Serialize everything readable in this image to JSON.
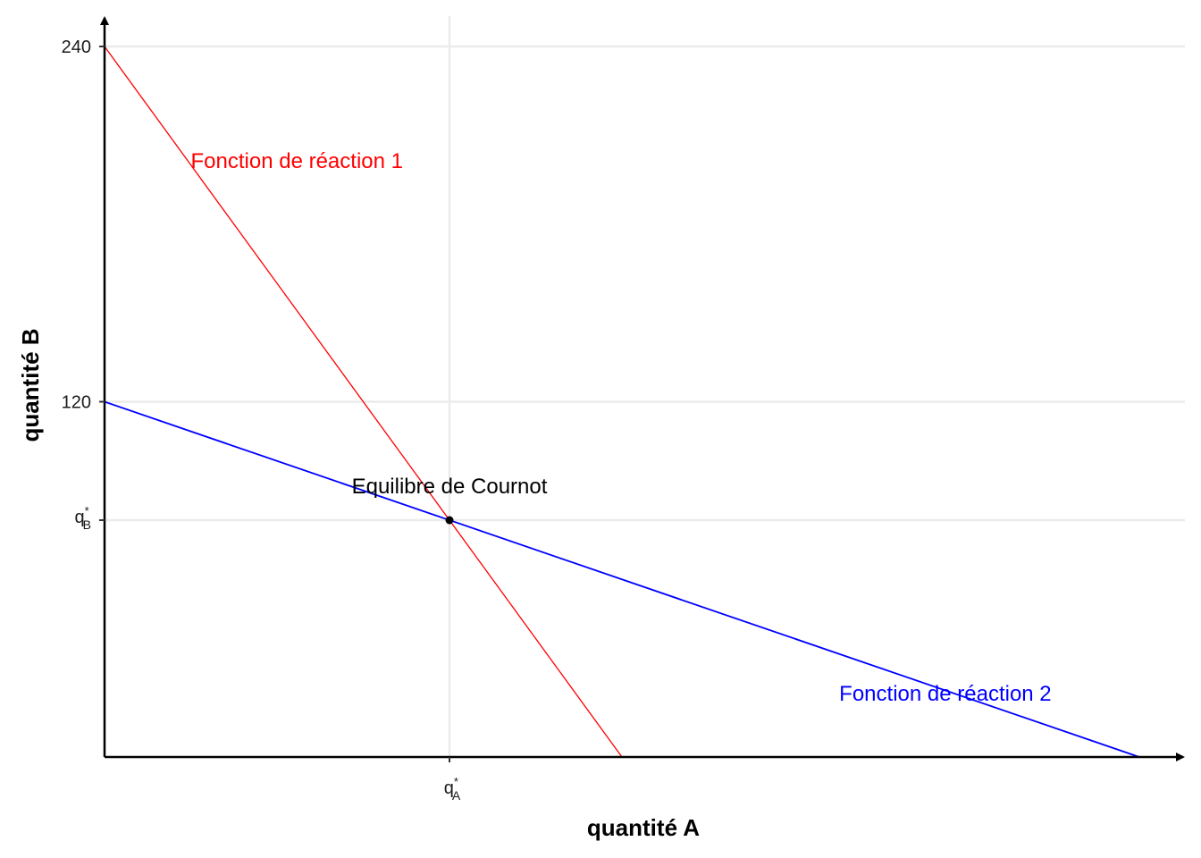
{
  "chart_data": {
    "type": "line",
    "xlabel": "quantité A",
    "ylabel": "quantité B",
    "xlim": [
      0,
      300
    ],
    "ylim": [
      0,
      240
    ],
    "grid": true,
    "x_ticks": [
      {
        "value": 100,
        "label": "q",
        "sup": "*",
        "sub": "A"
      }
    ],
    "y_ticks": [
      {
        "value": 240,
        "label": "240"
      },
      {
        "value": 120,
        "label": "120"
      },
      {
        "value": 80,
        "label": "q",
        "sup": "*",
        "sub": "B"
      }
    ],
    "series": [
      {
        "name": "Fonction de réaction 1",
        "color": "#ff0000",
        "x": [
          0,
          150
        ],
        "y": [
          240,
          0
        ]
      },
      {
        "name": "Fonction de réaction 2",
        "color": "#0000ff",
        "x": [
          0,
          300
        ],
        "y": [
          120,
          0
        ]
      }
    ],
    "annotations": [
      {
        "text": "Fonction de réaction 1",
        "x": 25,
        "y": 199,
        "color": "#ff0000"
      },
      {
        "text": "Fonction de réaction 2",
        "x": 213,
        "y": 19,
        "color": "#0000ff"
      },
      {
        "text": "Equilibre de Cournot",
        "x": 100,
        "y": 89,
        "color": "#000000"
      }
    ],
    "points": [
      {
        "label": "Equilibre de Cournot",
        "x": 100,
        "y": 80
      }
    ]
  }
}
